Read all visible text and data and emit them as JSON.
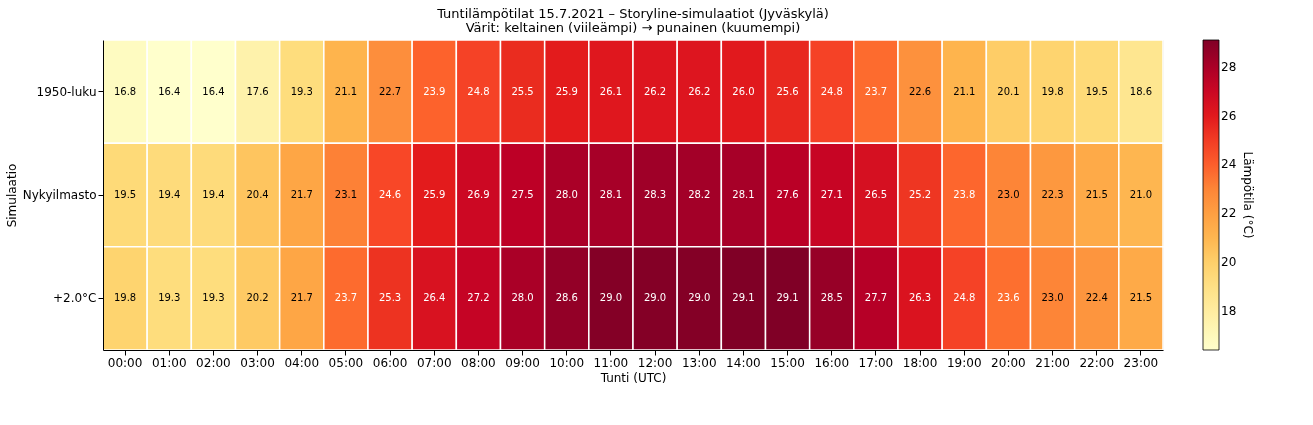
{
  "chart_data": {
    "type": "heatmap",
    "title": "Tuntilämpötilat 15.7.2021 – Storyline-simulaatiot (Jyväskylä)",
    "subtitle": "Värit: keltainen (viileämpi) → punainen (kuumempi)",
    "xlabel": "Tunti (UTC)",
    "ylabel": "Simulaatio",
    "clabel": "Lämpötila (°C)",
    "categories": [
      "00:00",
      "01:00",
      "02:00",
      "03:00",
      "04:00",
      "05:00",
      "06:00",
      "07:00",
      "08:00",
      "09:00",
      "10:00",
      "11:00",
      "12:00",
      "13:00",
      "14:00",
      "15:00",
      "16:00",
      "17:00",
      "18:00",
      "19:00",
      "20:00",
      "21:00",
      "22:00",
      "23:00"
    ],
    "y_categories": [
      "1950-luku",
      "Nykyilmasto",
      "+2.0°C"
    ],
    "cells": [
      [
        16.8,
        16.4,
        16.4,
        17.6,
        19.3,
        21.1,
        22.7,
        23.9,
        24.8,
        25.5,
        25.9,
        26.1,
        26.2,
        26.2,
        26.0,
        25.6,
        24.8,
        23.7,
        22.6,
        21.1,
        20.1,
        19.8,
        19.5,
        18.6
      ],
      [
        19.5,
        19.4,
        19.4,
        20.4,
        21.7,
        23.1,
        24.6,
        25.9,
        26.9,
        27.5,
        28.0,
        28.1,
        28.3,
        28.2,
        28.1,
        27.6,
        27.1,
        26.5,
        25.2,
        23.8,
        23.0,
        22.3,
        21.5,
        21.0
      ],
      [
        19.8,
        19.3,
        19.3,
        20.2,
        21.7,
        23.7,
        25.3,
        26.4,
        27.2,
        28.0,
        28.6,
        29.0,
        29.0,
        29.0,
        29.1,
        29.1,
        28.5,
        27.7,
        26.3,
        24.8,
        23.6,
        23.0,
        22.4,
        21.5
      ]
    ],
    "cell_labels": [
      [
        "16.8",
        "16.4",
        "16.4",
        "17.6",
        "19.3",
        "21.1",
        "22.7",
        "23.9",
        "24.8",
        "25.5",
        "25.9",
        "26.1",
        "26.2",
        "26.2",
        "26.0",
        "25.6",
        "24.8",
        "23.7",
        "22.6",
        "21.1",
        "20.1",
        "19.8",
        "19.5",
        "18.6"
      ],
      [
        "19.5",
        "19.4",
        "19.4",
        "20.4",
        "21.7",
        "23.1",
        "24.6",
        "25.9",
        "26.9",
        "27.5",
        "28.0",
        "28.1",
        "28.3",
        "28.2",
        "28.1",
        "27.6",
        "27.1",
        "26.5",
        "25.2",
        "23.8",
        "23.0",
        "22.3",
        "21.5",
        "21.0"
      ],
      [
        "19.8",
        "19.3",
        "19.3",
        "20.2",
        "21.7",
        "23.7",
        "25.3",
        "26.4",
        "27.2",
        "28.0",
        "28.6",
        "29.0",
        "29.0",
        "29.0",
        "29.1",
        "29.1",
        "28.5",
        "27.7",
        "26.3",
        "24.8",
        "23.6",
        "23.0",
        "22.4",
        "21.5"
      ]
    ],
    "clim": [
      16.4,
      29.1
    ],
    "cticks": [
      18,
      20,
      22,
      24,
      26,
      28
    ]
  }
}
